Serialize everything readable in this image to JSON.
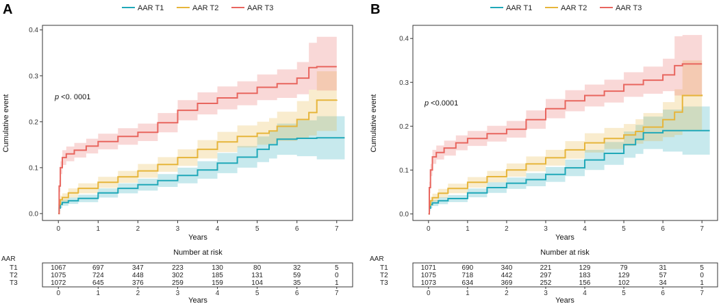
{
  "legend": {
    "items": [
      {
        "label": "AAR T1",
        "color": "#1fa8b8"
      },
      {
        "label": "AAR T2",
        "color": "#e6b53a"
      },
      {
        "label": "AAR T3",
        "color": "#e8655e"
      }
    ]
  },
  "colors": {
    "t1": "#1fa8b8",
    "t2": "#e6b53a",
    "t3": "#e8655e",
    "axis": "#333333"
  },
  "chart_data": [
    {
      "panel": "A",
      "type": "line",
      "title": "",
      "xlabel": "Years",
      "ylabel": "Cumulative event",
      "xlim": [
        -0.4,
        7.4
      ],
      "ylim": [
        -0.015,
        0.41
      ],
      "xticks": [
        0,
        1,
        2,
        3,
        4,
        5,
        6,
        7
      ],
      "yticks": [
        0.0,
        0.1,
        0.2,
        0.3,
        0.4
      ],
      "ytick_labels": [
        "0.0",
        "0.1",
        "0.2",
        "0.3",
        "0.4"
      ],
      "p_label": "p",
      "p_value": " <0. 0001",
      "series": [
        {
          "name": "AAR T1",
          "x": [
            0,
            0.02,
            0.05,
            0.1,
            0.25,
            0.5,
            1.0,
            1.5,
            2.0,
            2.5,
            3.0,
            3.5,
            4.0,
            4.5,
            5.0,
            5.3,
            5.5,
            6.0,
            6.5,
            7.2
          ],
          "values": [
            0,
            0.012,
            0.02,
            0.024,
            0.028,
            0.033,
            0.045,
            0.055,
            0.063,
            0.072,
            0.083,
            0.095,
            0.11,
            0.123,
            0.14,
            0.15,
            0.162,
            0.164,
            0.165,
            0.165
          ],
          "lower": [
            0,
            0.005,
            0.012,
            0.017,
            0.021,
            0.025,
            0.035,
            0.044,
            0.05,
            0.058,
            0.066,
            0.076,
            0.088,
            0.1,
            0.112,
            0.12,
            0.128,
            0.125,
            0.118,
            0.11
          ],
          "upper": [
            0,
            0.019,
            0.028,
            0.031,
            0.035,
            0.041,
            0.055,
            0.066,
            0.076,
            0.086,
            0.1,
            0.114,
            0.132,
            0.147,
            0.168,
            0.18,
            0.196,
            0.203,
            0.212,
            0.22
          ]
        },
        {
          "name": "AAR T2",
          "x": [
            0,
            0.02,
            0.05,
            0.1,
            0.25,
            0.5,
            1.0,
            1.5,
            2.0,
            2.5,
            3.0,
            3.5,
            4.0,
            4.5,
            5.0,
            5.3,
            5.5,
            6.0,
            6.3,
            6.5,
            7.0
          ],
          "values": [
            0,
            0.02,
            0.03,
            0.035,
            0.045,
            0.055,
            0.068,
            0.08,
            0.093,
            0.107,
            0.122,
            0.14,
            0.156,
            0.168,
            0.175,
            0.18,
            0.19,
            0.205,
            0.22,
            0.247,
            0.248
          ],
          "lower": [
            0,
            0.012,
            0.021,
            0.026,
            0.035,
            0.044,
            0.056,
            0.067,
            0.078,
            0.091,
            0.104,
            0.12,
            0.134,
            0.144,
            0.15,
            0.152,
            0.158,
            0.165,
            0.17,
            0.18,
            0.18
          ],
          "upper": [
            0,
            0.028,
            0.039,
            0.044,
            0.055,
            0.066,
            0.08,
            0.093,
            0.108,
            0.123,
            0.14,
            0.16,
            0.178,
            0.192,
            0.2,
            0.208,
            0.222,
            0.245,
            0.27,
            0.31,
            0.31
          ]
        },
        {
          "name": "AAR T3",
          "x": [
            0,
            0.02,
            0.05,
            0.1,
            0.2,
            0.4,
            0.7,
            1.0,
            1.5,
            2.0,
            2.5,
            3.0,
            3.5,
            4.0,
            4.5,
            5.0,
            5.5,
            6.0,
            6.3,
            6.5,
            7.0
          ],
          "values": [
            0,
            0.06,
            0.1,
            0.122,
            0.13,
            0.138,
            0.147,
            0.157,
            0.168,
            0.177,
            0.198,
            0.225,
            0.24,
            0.252,
            0.262,
            0.275,
            0.283,
            0.295,
            0.318,
            0.32,
            0.32
          ],
          "lower": [
            0,
            0.047,
            0.086,
            0.106,
            0.114,
            0.122,
            0.131,
            0.14,
            0.15,
            0.158,
            0.177,
            0.203,
            0.216,
            0.227,
            0.236,
            0.247,
            0.252,
            0.26,
            0.27,
            0.268,
            0.268
          ],
          "upper": [
            0,
            0.073,
            0.114,
            0.138,
            0.146,
            0.154,
            0.163,
            0.174,
            0.186,
            0.196,
            0.219,
            0.247,
            0.264,
            0.277,
            0.288,
            0.303,
            0.314,
            0.33,
            0.372,
            0.385,
            0.385
          ]
        }
      ],
      "risk_table": {
        "title": "Number at risk",
        "group_label": "AAR",
        "rows": [
          {
            "label": "T1",
            "values": [
              "1067",
              "697",
              "347",
              "223",
              "130",
              "80",
              "32",
              "5"
            ]
          },
          {
            "label": "T2",
            "values": [
              "1075",
              "724",
              "448",
              "302",
              "185",
              "131",
              "59",
              "0"
            ]
          },
          {
            "label": "T3",
            "values": [
              "1072",
              "645",
              "376",
              "259",
              "159",
              "104",
              "35",
              "1"
            ]
          }
        ],
        "xlabel": "Years"
      }
    },
    {
      "panel": "B",
      "type": "line",
      "title": "",
      "xlabel": "Years",
      "ylabel": "Cumulative event",
      "xlim": [
        -0.4,
        7.4
      ],
      "ylim": [
        -0.015,
        0.43
      ],
      "xticks": [
        0,
        1,
        2,
        3,
        4,
        5,
        6,
        7
      ],
      "yticks": [
        0.0,
        0.1,
        0.2,
        0.3,
        0.4
      ],
      "ytick_labels": [
        "0.0",
        "0.1",
        "0.2",
        "0.3",
        "0.4"
      ],
      "p_label": "p",
      "p_value": " <0.0001",
      "series": [
        {
          "name": "AAR T1",
          "x": [
            0,
            0.02,
            0.05,
            0.1,
            0.25,
            0.5,
            1.0,
            1.5,
            2.0,
            2.5,
            3.0,
            3.5,
            4.0,
            4.5,
            5.0,
            5.3,
            5.5,
            6.0,
            6.5,
            7.2
          ],
          "values": [
            0,
            0.013,
            0.021,
            0.025,
            0.03,
            0.035,
            0.048,
            0.06,
            0.07,
            0.078,
            0.09,
            0.105,
            0.123,
            0.138,
            0.158,
            0.17,
            0.185,
            0.19,
            0.19,
            0.19
          ],
          "lower": [
            0,
            0.006,
            0.013,
            0.018,
            0.022,
            0.027,
            0.038,
            0.048,
            0.057,
            0.063,
            0.073,
            0.086,
            0.1,
            0.112,
            0.128,
            0.137,
            0.148,
            0.142,
            0.135,
            0.13
          ],
          "upper": [
            0,
            0.02,
            0.029,
            0.032,
            0.038,
            0.043,
            0.058,
            0.072,
            0.083,
            0.093,
            0.107,
            0.124,
            0.146,
            0.164,
            0.188,
            0.203,
            0.222,
            0.238,
            0.245,
            0.248
          ]
        },
        {
          "name": "AAR T2",
          "x": [
            0,
            0.02,
            0.05,
            0.1,
            0.25,
            0.5,
            1.0,
            1.5,
            2.0,
            2.5,
            3.0,
            3.5,
            4.0,
            4.5,
            5.0,
            5.3,
            5.5,
            6.0,
            6.3,
            6.5,
            7.0
          ],
          "values": [
            0,
            0.02,
            0.03,
            0.037,
            0.047,
            0.058,
            0.072,
            0.085,
            0.1,
            0.114,
            0.128,
            0.146,
            0.162,
            0.172,
            0.18,
            0.188,
            0.198,
            0.215,
            0.232,
            0.27,
            0.272
          ],
          "lower": [
            0,
            0.012,
            0.021,
            0.028,
            0.037,
            0.047,
            0.06,
            0.072,
            0.085,
            0.097,
            0.11,
            0.126,
            0.14,
            0.148,
            0.155,
            0.16,
            0.166,
            0.175,
            0.18,
            0.19,
            0.19
          ],
          "upper": [
            0,
            0.028,
            0.039,
            0.046,
            0.057,
            0.069,
            0.084,
            0.098,
            0.115,
            0.131,
            0.146,
            0.166,
            0.184,
            0.196,
            0.205,
            0.216,
            0.23,
            0.255,
            0.284,
            0.35,
            0.35
          ]
        },
        {
          "name": "AAR T3",
          "x": [
            0,
            0.02,
            0.05,
            0.1,
            0.2,
            0.4,
            0.7,
            1.0,
            1.5,
            2.0,
            2.5,
            3.0,
            3.5,
            4.0,
            4.5,
            5.0,
            5.5,
            6.0,
            6.3,
            6.5,
            7.0
          ],
          "values": [
            0,
            0.06,
            0.1,
            0.13,
            0.14,
            0.15,
            0.162,
            0.172,
            0.183,
            0.193,
            0.215,
            0.24,
            0.258,
            0.27,
            0.28,
            0.295,
            0.305,
            0.317,
            0.338,
            0.342,
            0.342
          ],
          "lower": [
            0,
            0.047,
            0.086,
            0.114,
            0.124,
            0.133,
            0.145,
            0.155,
            0.165,
            0.174,
            0.194,
            0.218,
            0.234,
            0.245,
            0.254,
            0.267,
            0.274,
            0.28,
            0.27,
            0.268,
            0.268
          ],
          "upper": [
            0,
            0.073,
            0.114,
            0.146,
            0.156,
            0.167,
            0.179,
            0.189,
            0.201,
            0.212,
            0.236,
            0.262,
            0.282,
            0.295,
            0.306,
            0.323,
            0.336,
            0.354,
            0.405,
            0.408,
            0.408
          ]
        }
      ],
      "risk_table": {
        "title": "Number at risk",
        "group_label": "AAR",
        "rows": [
          {
            "label": "T1",
            "values": [
              "1071",
              "690",
              "340",
              "221",
              "129",
              "79",
              "31",
              "5"
            ]
          },
          {
            "label": "T2",
            "values": [
              "1075",
              "718",
              "442",
              "297",
              "183",
              "129",
              "57",
              "0"
            ]
          },
          {
            "label": "T3",
            "values": [
              "1073",
              "634",
              "369",
              "252",
              "156",
              "102",
              "34",
              "1"
            ]
          }
        ],
        "xlabel": "Years"
      }
    }
  ]
}
